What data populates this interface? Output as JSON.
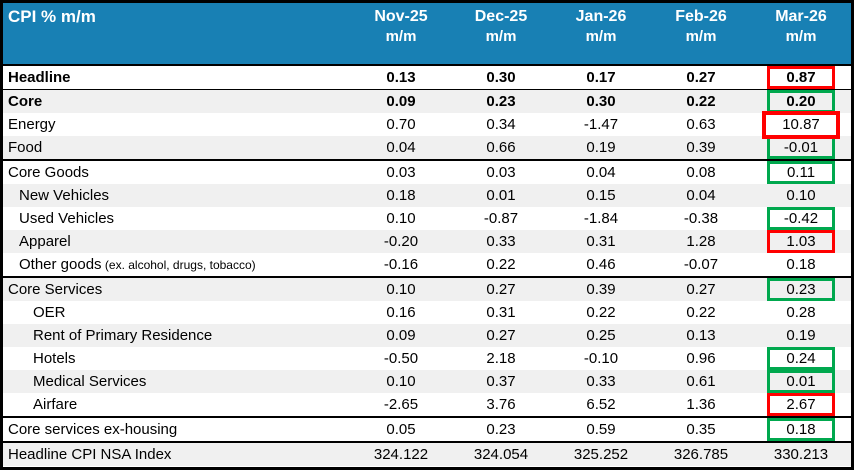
{
  "chart_data": {
    "type": "table",
    "title": "CPI % m/m",
    "columns": [
      {
        "month": "Nov-25",
        "unit": "m/m"
      },
      {
        "month": "Dec-25",
        "unit": "m/m"
      },
      {
        "month": "Jan-26",
        "unit": "m/m"
      },
      {
        "month": "Feb-26",
        "unit": "m/m"
      },
      {
        "month": "Mar-26",
        "unit": "m/m"
      }
    ],
    "rows": [
      {
        "label": "Headline",
        "values": [
          "0.13",
          "0.30",
          "0.17",
          "0.27",
          "0.87"
        ],
        "highlight": "red",
        "bold": true,
        "indent": 0,
        "shaded": false,
        "section_start": false,
        "underline": true
      },
      {
        "label": "Core",
        "values": [
          "0.09",
          "0.23",
          "0.30",
          "0.22",
          "0.20"
        ],
        "highlight": "green",
        "bold": true,
        "indent": 0,
        "shaded": true,
        "section_start": false
      },
      {
        "label": "Energy",
        "values": [
          "0.70",
          "0.34",
          "-1.47",
          "0.63",
          "10.87"
        ],
        "highlight": "red",
        "highlight_strong": true,
        "bold": false,
        "indent": 0,
        "shaded": false,
        "section_start": false
      },
      {
        "label": "Food",
        "values": [
          "0.04",
          "0.66",
          "0.19",
          "0.39",
          "-0.01"
        ],
        "highlight": "green",
        "bold": false,
        "indent": 0,
        "shaded": true,
        "section_start": false
      },
      {
        "label": "Core Goods",
        "values": [
          "0.03",
          "0.03",
          "0.04",
          "0.08",
          "0.11"
        ],
        "highlight": "green",
        "bold": false,
        "indent": 0,
        "shaded": false,
        "section_start": true
      },
      {
        "label": "New Vehicles",
        "values": [
          "0.18",
          "0.01",
          "0.15",
          "0.04",
          "0.10"
        ],
        "highlight": null,
        "bold": false,
        "indent": 1,
        "shaded": true,
        "section_start": false
      },
      {
        "label": "Used Vehicles",
        "values": [
          "0.10",
          "-0.87",
          "-1.84",
          "-0.38",
          "-0.42"
        ],
        "highlight": "green",
        "bold": false,
        "indent": 1,
        "shaded": false,
        "section_start": false
      },
      {
        "label": "Apparel",
        "values": [
          "-0.20",
          "0.33",
          "0.31",
          "1.28",
          "1.03"
        ],
        "highlight": "red",
        "bold": false,
        "indent": 1,
        "shaded": true,
        "section_start": false
      },
      {
        "label": "Other goods",
        "label_note": "(ex. alcohol, drugs, tobacco)",
        "values": [
          "-0.16",
          "0.22",
          "0.46",
          "-0.07",
          "0.18"
        ],
        "highlight": null,
        "bold": false,
        "indent": 1,
        "shaded": false,
        "section_start": false
      },
      {
        "label": "Core Services",
        "values": [
          "0.10",
          "0.27",
          "0.39",
          "0.27",
          "0.23"
        ],
        "highlight": "green",
        "bold": false,
        "indent": 0,
        "shaded": true,
        "section_start": true
      },
      {
        "label": "OER",
        "values": [
          "0.16",
          "0.31",
          "0.22",
          "0.22",
          "0.28"
        ],
        "highlight": null,
        "bold": false,
        "indent": 2,
        "shaded": false,
        "section_start": false
      },
      {
        "label": "Rent of Primary Residence",
        "values": [
          "0.09",
          "0.27",
          "0.25",
          "0.13",
          "0.19"
        ],
        "highlight": null,
        "bold": false,
        "indent": 2,
        "shaded": true,
        "section_start": false
      },
      {
        "label": "Hotels",
        "values": [
          "-0.50",
          "2.18",
          "-0.10",
          "0.96",
          "0.24"
        ],
        "highlight": "green",
        "bold": false,
        "indent": 2,
        "shaded": false,
        "section_start": false
      },
      {
        "label": "Medical Services",
        "values": [
          "0.10",
          "0.37",
          "0.33",
          "0.61",
          "0.01"
        ],
        "highlight": "green",
        "bold": false,
        "indent": 2,
        "shaded": true,
        "section_start": false
      },
      {
        "label": "Airfare",
        "values": [
          "-2.65",
          "3.76",
          "6.52",
          "1.36",
          "2.67"
        ],
        "highlight": "red",
        "bold": false,
        "indent": 2,
        "shaded": false,
        "section_start": false
      },
      {
        "label": "Core services ex-housing",
        "values": [
          "0.05",
          "0.23",
          "0.59",
          "0.35",
          "0.18"
        ],
        "highlight": "green",
        "bold": false,
        "indent": 0,
        "shaded": false,
        "section_start": true
      },
      {
        "label": "Headline CPI NSA Index",
        "values": [
          "324.122",
          "324.054",
          "325.252",
          "326.785",
          "330.213"
        ],
        "highlight": null,
        "bold": false,
        "indent": 0,
        "shaded": true,
        "section_start": true
      }
    ]
  },
  "colors": {
    "header_bg": "#1880B4",
    "stripe": "#F0F0F0",
    "highlight_red": "#FF0000",
    "highlight_green": "#00A84E",
    "border": "#000000",
    "header_text": "#FFFFFF"
  }
}
